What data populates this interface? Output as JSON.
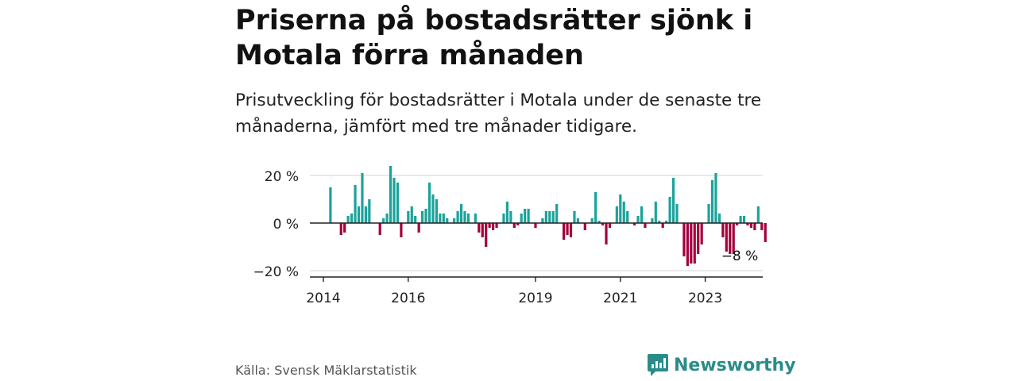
{
  "title": "Priserna på bostadsrätter sjönk i Motala förra månaden",
  "subtitle": "Prisutveckling för bostadsrätter i Motala under de senaste tre månaderna, jämfört med tre månader tidigare.",
  "source": "Källa: Svensk Mäklarstatistik",
  "brand": "Newsworthy",
  "colors": {
    "positive": "#1aa39b",
    "negative": "#a3003c",
    "grid": "#d4d4d4",
    "axis": "#222222",
    "brand": "#2a8c89"
  },
  "chart_data": {
    "type": "bar",
    "title": "",
    "xlabel": "",
    "ylabel": "",
    "ylim": [
      -22,
      24
    ],
    "yticks": [
      {
        "value": 20,
        "label": "20 %"
      },
      {
        "value": 0,
        "label": "0 %"
      },
      {
        "value": -20,
        "label": "−20 %"
      }
    ],
    "xticks": [
      {
        "value": 2014,
        "label": "2014"
      },
      {
        "value": 2016,
        "label": "2016"
      },
      {
        "value": 2019,
        "label": "2019"
      },
      {
        "value": 2021,
        "label": "2021"
      },
      {
        "value": 2023,
        "label": "2023"
      }
    ],
    "x_start": 2014.0,
    "x_end": 2024.5,
    "grid": true,
    "annotation": {
      "label": "−8 %"
    },
    "series": [
      {
        "start": "2014-03",
        "values": [
          15,
          0,
          0,
          -5,
          -4,
          3,
          4,
          16,
          7,
          21,
          7,
          10,
          0,
          0,
          -5,
          2,
          4,
          24,
          19,
          17,
          -6,
          0,
          5,
          7,
          3,
          -4,
          5,
          6,
          17,
          12,
          10,
          4,
          4,
          2,
          0,
          2,
          5,
          8,
          5,
          4,
          0,
          4,
          -4,
          -6,
          -10,
          -2,
          -3,
          -2,
          0,
          4,
          9,
          5,
          -2,
          -1,
          4,
          6,
          6,
          0,
          -2,
          0,
          2,
          5,
          5,
          5,
          8,
          0,
          -7,
          -5,
          -6,
          5,
          2,
          0,
          -3,
          0,
          2,
          13,
          1,
          -1,
          -9,
          -2,
          0,
          7,
          12,
          9,
          5,
          0,
          -1,
          3,
          7,
          -2,
          0,
          2,
          9,
          1,
          -2,
          1,
          11,
          19,
          8,
          0,
          -14,
          -18,
          -17,
          -17,
          -13,
          -9,
          0,
          8,
          18,
          21,
          4,
          -6,
          -12,
          -13,
          -13,
          -1,
          3,
          3,
          -1,
          -2,
          -3,
          7,
          -3,
          -8
        ]
      }
    ]
  }
}
